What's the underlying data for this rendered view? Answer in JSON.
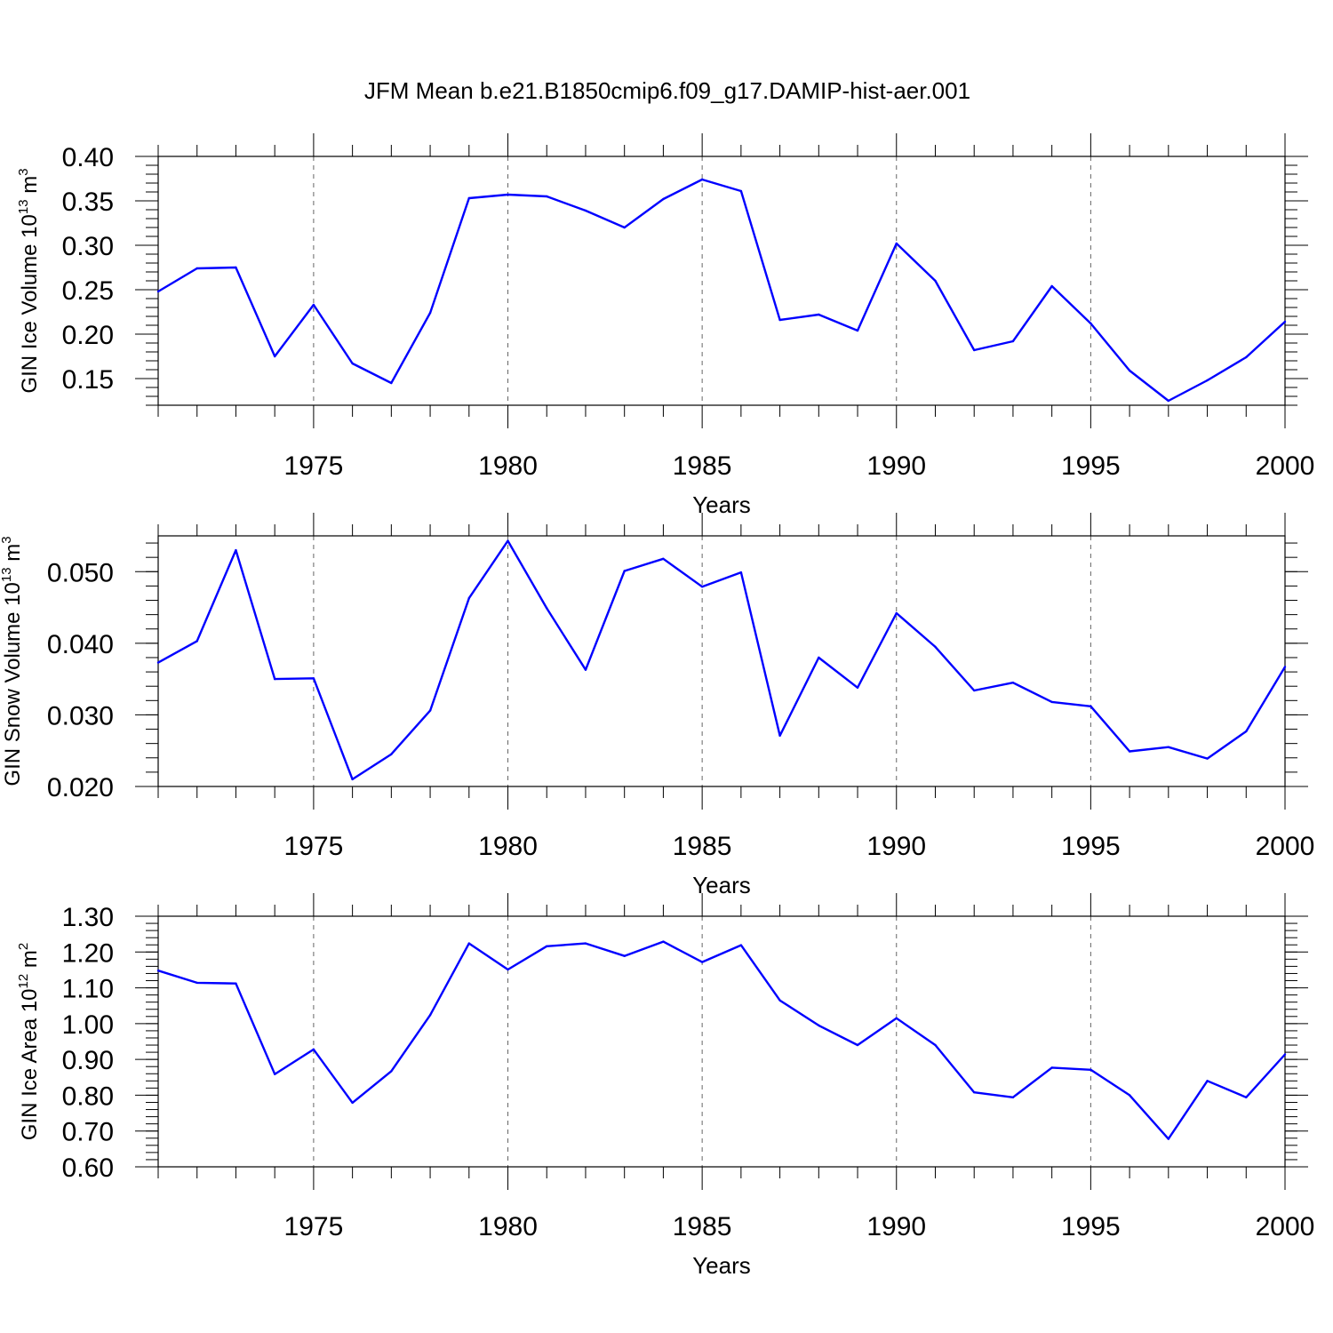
{
  "title": "JFM Mean b.e21.B1850cmip6.f09_g17.DAMIP-hist-aer.001",
  "chart_data": [
    {
      "type": "line",
      "ylabel_main": "GIN Ice Volume 10",
      "ylabel_exp": "13",
      "ylabel_unit": "m",
      "ylabel_unit_exp": "3",
      "xlabel": "Years",
      "x": [
        1971,
        1972,
        1973,
        1974,
        1975,
        1976,
        1977,
        1978,
        1979,
        1980,
        1981,
        1982,
        1983,
        1984,
        1985,
        1986,
        1987,
        1988,
        1989,
        1990,
        1991,
        1992,
        1993,
        1994,
        1995,
        1996,
        1997,
        1998,
        1999,
        2000
      ],
      "values": [
        0.248,
        0.274,
        0.275,
        0.175,
        0.233,
        0.167,
        0.145,
        0.224,
        0.353,
        0.357,
        0.355,
        0.339,
        0.32,
        0.352,
        0.374,
        0.361,
        0.216,
        0.222,
        0.204,
        0.302,
        0.26,
        0.182,
        0.192,
        0.254,
        0.212,
        0.159,
        0.125,
        0.148,
        0.174,
        0.214
      ],
      "xlim": [
        1971,
        2000
      ],
      "ylim": [
        0.12,
        0.4
      ],
      "xticks": [
        "1975",
        "1980",
        "1985",
        "1990",
        "1995",
        "2000"
      ],
      "yticks": [
        "0.15",
        "0.20",
        "0.25",
        "0.30",
        "0.35",
        "0.40"
      ],
      "ytick_values": [
        0.15,
        0.2,
        0.25,
        0.3,
        0.35,
        0.4
      ],
      "line_color": "#0000ff"
    },
    {
      "type": "line",
      "ylabel_main": "GIN Snow Volume 10",
      "ylabel_exp": "13",
      "ylabel_unit": "m",
      "ylabel_unit_exp": "3",
      "xlabel": "Years",
      "x": [
        1971,
        1972,
        1973,
        1974,
        1975,
        1976,
        1977,
        1978,
        1979,
        1980,
        1981,
        1982,
        1983,
        1984,
        1985,
        1986,
        1987,
        1988,
        1989,
        1990,
        1991,
        1992,
        1993,
        1994,
        1995,
        1996,
        1997,
        1998,
        1999,
        2000
      ],
      "values": [
        0.0373,
        0.0403,
        0.053,
        0.035,
        0.0351,
        0.021,
        0.0245,
        0.0306,
        0.0463,
        0.0543,
        0.0449,
        0.0363,
        0.0501,
        0.0518,
        0.0479,
        0.0499,
        0.0271,
        0.038,
        0.0338,
        0.0442,
        0.0395,
        0.0334,
        0.0345,
        0.0318,
        0.0312,
        0.0249,
        0.0255,
        0.0239,
        0.0277,
        0.0367
      ],
      "xlim": [
        1971,
        2000
      ],
      "ylim": [
        0.02,
        0.055
      ],
      "xticks": [
        "1975",
        "1980",
        "1985",
        "1990",
        "1995",
        "2000"
      ],
      "yticks": [
        "0.020",
        "0.030",
        "0.040",
        "0.050"
      ],
      "ytick_values": [
        0.02,
        0.03,
        0.04,
        0.05
      ],
      "line_color": "#0000ff"
    },
    {
      "type": "line",
      "ylabel_main": "GIN Ice Area 10",
      "ylabel_exp": "12",
      "ylabel_unit": "m",
      "ylabel_unit_exp": "2",
      "xlabel": "Years",
      "x": [
        1971,
        1972,
        1973,
        1974,
        1975,
        1976,
        1977,
        1978,
        1979,
        1980,
        1981,
        1982,
        1983,
        1984,
        1985,
        1986,
        1987,
        1988,
        1989,
        1990,
        1991,
        1992,
        1993,
        1994,
        1995,
        1996,
        1997,
        1998,
        1999,
        2000
      ],
      "values": [
        1.148,
        1.114,
        1.112,
        0.859,
        0.928,
        0.779,
        0.867,
        1.024,
        1.224,
        1.151,
        1.216,
        1.224,
        1.189,
        1.229,
        1.172,
        1.219,
        1.065,
        0.995,
        0.94,
        1.015,
        0.94,
        0.808,
        0.794,
        0.877,
        0.871,
        0.8,
        0.678,
        0.84,
        0.794,
        0.914
      ],
      "xlim": [
        1971,
        2000
      ],
      "ylim": [
        0.6,
        1.3
      ],
      "xticks": [
        "1975",
        "1980",
        "1985",
        "1990",
        "1995",
        "2000"
      ],
      "yticks": [
        "0.60",
        "0.70",
        "0.80",
        "0.90",
        "1.00",
        "1.10",
        "1.20",
        "1.30"
      ],
      "ytick_values": [
        0.6,
        0.7,
        0.8,
        0.9,
        1.0,
        1.1,
        1.2,
        1.3
      ],
      "line_color": "#0000ff"
    }
  ]
}
